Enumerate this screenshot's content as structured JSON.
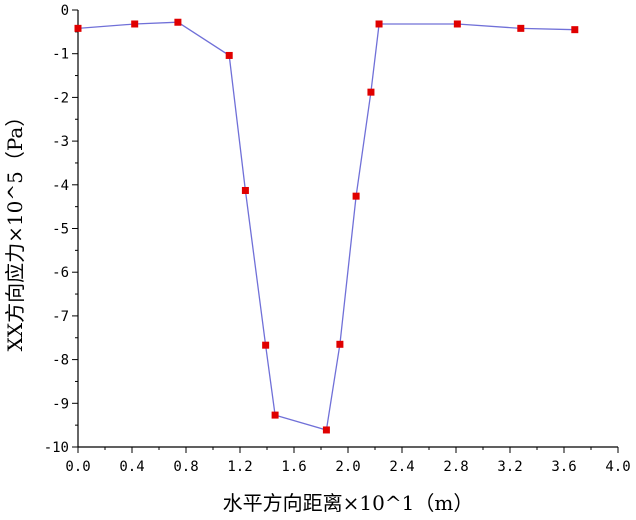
{
  "chart_data": {
    "type": "line",
    "title": "",
    "xlabel": "水平方向距离×10^1（m）",
    "ylabel": "XX方向应力×10^5（Pa）",
    "xlim": [
      0.0,
      4.0
    ],
    "ylim": [
      -10,
      0
    ],
    "x_ticks": [
      "0.0",
      "0.4",
      "0.8",
      "1.2",
      "1.6",
      "2.0",
      "2.4",
      "2.8",
      "3.2",
      "3.6",
      "4.0"
    ],
    "y_ticks": [
      "0",
      "-1",
      "-2",
      "-3",
      "-4",
      "-5",
      "-6",
      "-7",
      "-8",
      "-9",
      "-10"
    ],
    "grid": false,
    "line_color": "#7070d8",
    "marker_color": "#e00000",
    "series": [
      {
        "x": [
          0.0,
          0.42,
          0.74,
          1.12,
          1.24,
          1.39,
          1.46,
          1.84,
          1.94,
          2.06,
          2.17,
          2.23,
          2.81,
          3.28,
          3.68
        ],
        "y": [
          -0.42,
          -0.32,
          -0.28,
          -1.04,
          -4.13,
          -7.67,
          -9.27,
          -9.61,
          -7.65,
          -4.26,
          -1.88,
          -0.32,
          -0.32,
          -0.42,
          -0.45
        ]
      }
    ]
  }
}
